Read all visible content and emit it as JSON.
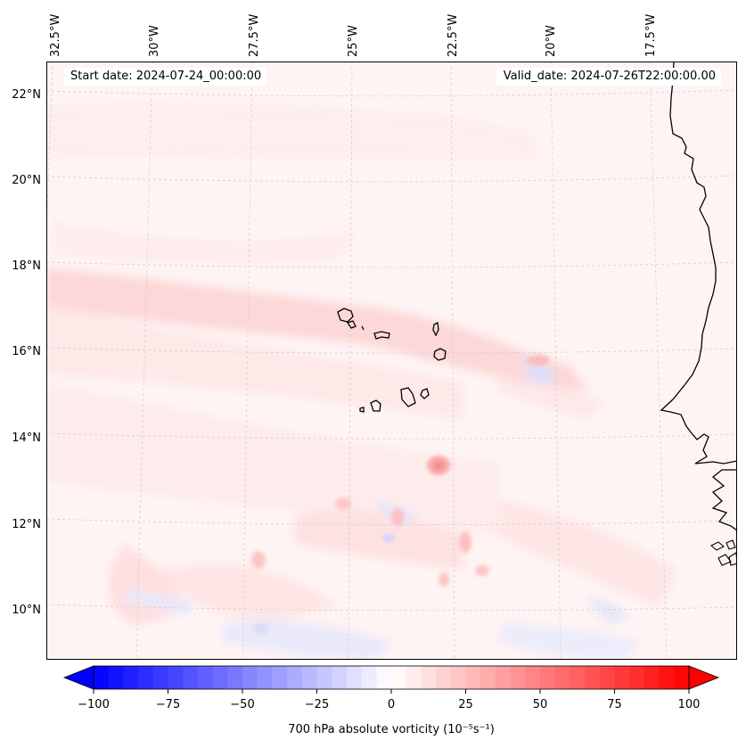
{
  "header": {
    "start_date": "Start date: 2024-07-24_00:00:00",
    "valid_date": "Valid_date: 2024-07-26T22:00:00.00"
  },
  "map": {
    "lon_labels": [
      "32.5°W",
      "30°W",
      "27.5°W",
      "25°W",
      "22.5°W",
      "20°W",
      "17.5°W"
    ],
    "lat_labels": [
      "22°N",
      "20°N",
      "18°N",
      "16°N",
      "14°N",
      "12°N",
      "10°N"
    ],
    "features": [
      "Cape Verde islands",
      "West African coastline"
    ]
  },
  "colorbar": {
    "label": "700 hPa absolute vorticity (10⁻⁵s⁻¹)",
    "ticks": [
      "−100",
      "−75",
      "−50",
      "−25",
      "0",
      "25",
      "50",
      "75",
      "100"
    ],
    "min": -100,
    "max": 100,
    "step": 5,
    "low_color": "#0000ff",
    "mid_color": "#ffffff",
    "high_color": "#ff0000"
  }
}
